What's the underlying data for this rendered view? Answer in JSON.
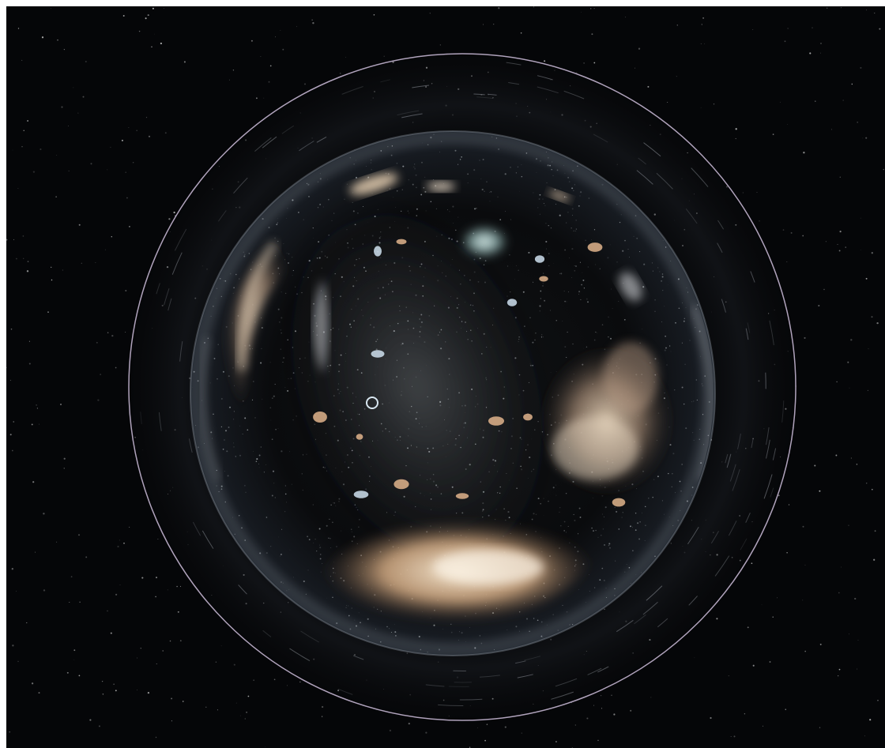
{
  "scene": {
    "subject": "wormhole-sphere",
    "colors": {
      "space_background": "#050608",
      "outer_ring": "#cfc0dc",
      "galaxy_cream": "#e8d2b4",
      "galaxy_tan": "#b89470",
      "nebula_cyan": "#cfe6e6",
      "glass_rim": "#dde6f2"
    }
  }
}
